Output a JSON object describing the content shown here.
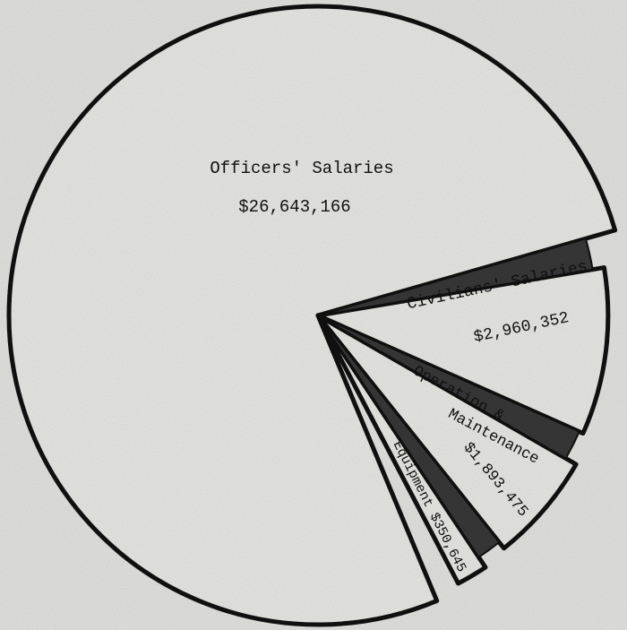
{
  "chart_data": {
    "type": "pie",
    "exploded": true,
    "colors": {
      "slice_fill": "#f2f2ee",
      "separator_fill": "#3a3a3a",
      "outline": "#111111",
      "background": "#ededea"
    },
    "slices": [
      {
        "label": "Officers' Salaries",
        "value": 26643166,
        "value_label": "$26,643,166"
      },
      {
        "label": "Civilians' Salaries",
        "value": 2960352,
        "value_label": "$2,960,352"
      },
      {
        "label": "Operation & Maintenance",
        "label_lines": [
          "Operation &",
          "Maintenance"
        ],
        "value": 1893475,
        "value_label": "$1,893,475"
      },
      {
        "label": "Equipment",
        "value": 350645,
        "value_label": "$350,645",
        "combined_label": "Equipment $350,645"
      }
    ]
  }
}
